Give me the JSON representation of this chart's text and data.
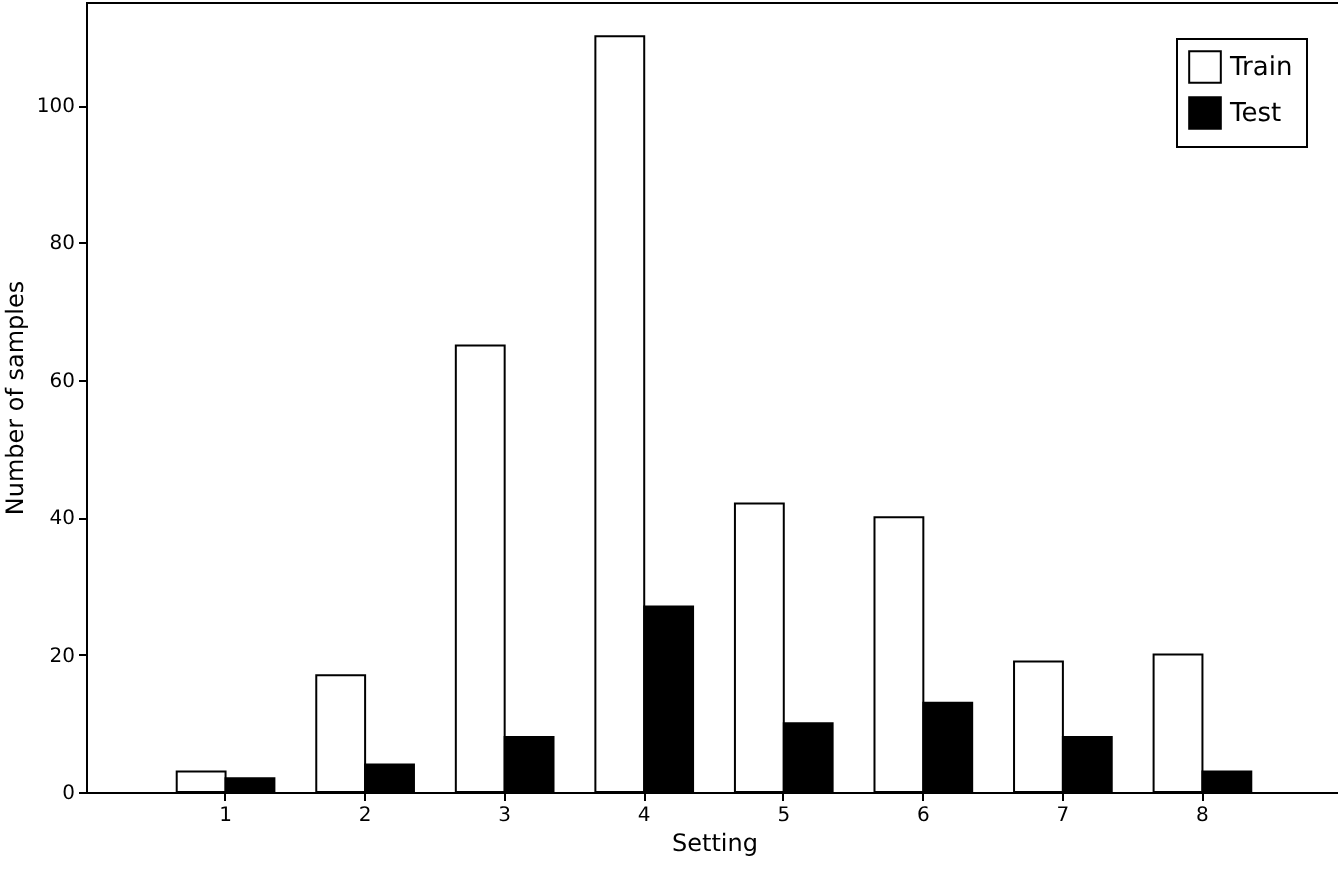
{
  "chart_data": {
    "type": "bar",
    "xlabel": "Setting",
    "ylabel": "Number of samples",
    "categories": [
      "1",
      "2",
      "3",
      "4",
      "5",
      "6",
      "7",
      "8"
    ],
    "series": [
      {
        "name": "Train",
        "color": "#ffffff",
        "values": [
          3,
          17,
          65,
          110,
          42,
          40,
          19,
          20
        ]
      },
      {
        "name": "Test",
        "color": "#000000",
        "values": [
          2,
          4,
          8,
          27,
          10,
          13,
          8,
          3
        ]
      }
    ],
    "ylim": [
      0,
      115
    ],
    "yticks": [
      0,
      20,
      40,
      60,
      80,
      100
    ],
    "grid": false,
    "legend": "top right"
  }
}
